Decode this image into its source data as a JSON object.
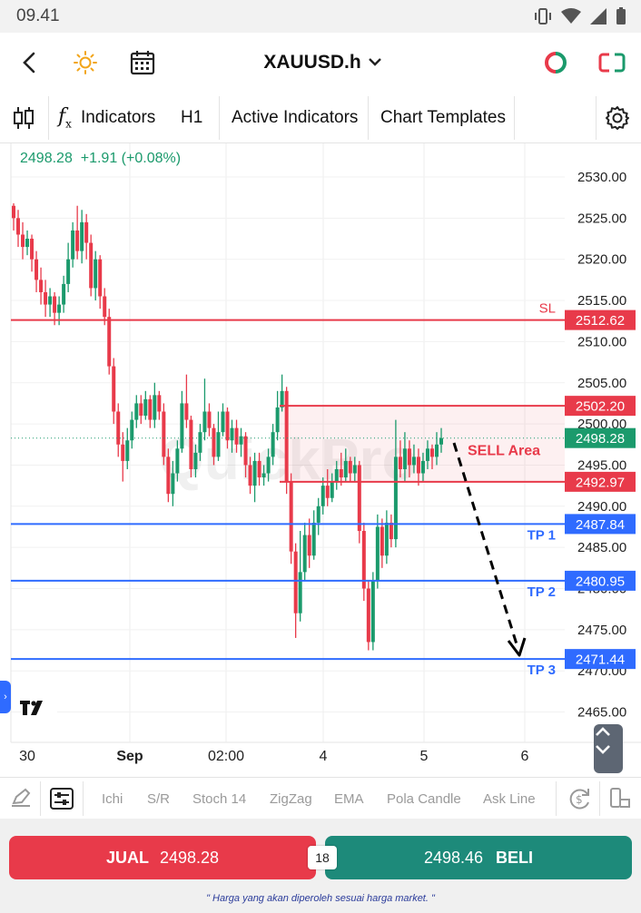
{
  "status_bar": {
    "time": "09.41"
  },
  "header": {
    "symbol": "XAUUSD.h"
  },
  "toolbar": {
    "indicators": "Indicators",
    "timeframe": "H1",
    "active_indicators": "Active Indicators",
    "chart_templates": "Chart Templates"
  },
  "quote": {
    "price": "2498.28",
    "change": "+1.91",
    "change_pct": "(+0.08%)"
  },
  "watermark": "QuickPro",
  "colors": {
    "bull": "#1b9a6c",
    "bear": "#e83a4a",
    "level_red": "#e83a4a",
    "level_blue": "#2f6bff"
  },
  "chart_data": {
    "type": "candlestick",
    "y_axis": {
      "ticks": [
        "2530.00",
        "2525.00",
        "2520.00",
        "2515.00",
        "2510.00",
        "2505.00",
        "2500.00",
        "2495.00",
        "2490.00",
        "2485.00",
        "2480.00",
        "2475.00",
        "2470.00",
        "2465.00"
      ],
      "ylim": [
        2462,
        2532
      ]
    },
    "x_axis": {
      "labels": [
        "30",
        "Sep",
        "02:00",
        "4",
        "5",
        "6"
      ]
    },
    "current_price": {
      "label": "2498.28",
      "value": 2498.28
    },
    "levels": [
      {
        "name": "SL",
        "price_label": "2512.62",
        "value": 2512.62,
        "color": "red"
      },
      {
        "name": "",
        "price_label": "2502.20",
        "value": 2502.2,
        "color": "red"
      },
      {
        "name": "",
        "price_label": "2492.97",
        "value": 2492.97,
        "color": "red"
      },
      {
        "name": "TP 1",
        "price_label": "2487.84",
        "value": 2487.84,
        "color": "blue"
      },
      {
        "name": "TP 2",
        "price_label": "2480.95",
        "value": 2480.95,
        "color": "blue"
      },
      {
        "name": "TP 3",
        "price_label": "2471.44",
        "value": 2471.44,
        "color": "blue"
      }
    ],
    "zone": {
      "label": "SELL Area",
      "from": 2492.97,
      "to": 2502.2
    },
    "candles": [
      [
        2526.5,
        2525.0,
        2526.8,
        2523.5
      ],
      [
        2525.0,
        2523.0,
        2526.0,
        2521.5
      ],
      [
        2523.0,
        2521.5,
        2524.5,
        2520.0
      ],
      [
        2521.5,
        2522.5,
        2523.5,
        2520.5
      ],
      [
        2522.5,
        2520.0,
        2523.0,
        2518.5
      ],
      [
        2520.0,
        2517.5,
        2521.0,
        2516.0
      ],
      [
        2517.5,
        2516.0,
        2519.0,
        2514.5
      ],
      [
        2516.0,
        2514.5,
        2517.5,
        2513.0
      ],
      [
        2514.5,
        2515.5,
        2516.5,
        2513.0
      ],
      [
        2515.5,
        2513.5,
        2516.0,
        2512.0
      ],
      [
        2513.5,
        2514.5,
        2515.5,
        2512.0
      ],
      [
        2514.5,
        2517.0,
        2518.0,
        2513.5
      ],
      [
        2517.0,
        2520.0,
        2522.0,
        2516.0
      ],
      [
        2520.0,
        2523.5,
        2524.5,
        2519.0
      ],
      [
        2523.5,
        2521.0,
        2526.5,
        2520.0
      ],
      [
        2521.0,
        2524.5,
        2526.0,
        2519.5
      ],
      [
        2524.5,
        2522.0,
        2525.5,
        2520.0
      ],
      [
        2522.0,
        2516.5,
        2523.0,
        2515.5
      ],
      [
        2516.5,
        2520.0,
        2521.0,
        2515.0
      ],
      [
        2520.0,
        2515.5,
        2520.5,
        2514.0
      ],
      [
        2515.5,
        2513.0,
        2516.5,
        2512.0
      ],
      [
        2513.0,
        2507.0,
        2514.0,
        2506.0
      ],
      [
        2507.0,
        2501.5,
        2508.0,
        2500.0
      ],
      [
        2501.5,
        2497.5,
        2502.5,
        2496.0
      ],
      [
        2497.5,
        2495.5,
        2499.0,
        2493.0
      ],
      [
        2495.5,
        2498.0,
        2499.5,
        2494.5
      ],
      [
        2498.0,
        2500.5,
        2501.5,
        2497.0
      ],
      [
        2500.5,
        2502.5,
        2503.5,
        2499.5
      ],
      [
        2502.5,
        2501.0,
        2503.5,
        2500.0
      ],
      [
        2501.0,
        2503.0,
        2504.0,
        2500.5
      ],
      [
        2503.0,
        2500.5,
        2503.5,
        2499.5
      ],
      [
        2500.5,
        2503.5,
        2505.0,
        2499.5
      ],
      [
        2503.5,
        2501.5,
        2504.0,
        2500.5
      ],
      [
        2501.5,
        2496.0,
        2502.5,
        2495.0
      ],
      [
        2496.0,
        2491.5,
        2497.0,
        2490.5
      ],
      [
        2491.5,
        2494.0,
        2495.5,
        2490.0
      ],
      [
        2494.0,
        2497.0,
        2498.0,
        2493.0
      ],
      [
        2497.0,
        2502.5,
        2504.0,
        2496.5
      ],
      [
        2502.5,
        2500.5,
        2506.0,
        2499.5
      ],
      [
        2500.5,
        2494.5,
        2501.0,
        2493.5
      ],
      [
        2494.5,
        2496.5,
        2497.5,
        2493.5
      ],
      [
        2496.5,
        2499.0,
        2500.0,
        2495.5
      ],
      [
        2499.0,
        2501.5,
        2505.5,
        2498.0
      ],
      [
        2501.5,
        2499.5,
        2502.5,
        2498.5
      ],
      [
        2499.5,
        2496.0,
        2500.0,
        2495.0
      ],
      [
        2496.0,
        2499.0,
        2501.5,
        2495.5
      ],
      [
        2499.0,
        2501.5,
        2502.5,
        2498.5
      ],
      [
        2501.5,
        2498.0,
        2502.0,
        2497.0
      ],
      [
        2498.0,
        2499.5,
        2500.5,
        2496.5
      ],
      [
        2499.5,
        2497.5,
        2500.5,
        2496.5
      ],
      [
        2497.5,
        2498.5,
        2499.5,
        2496.0
      ],
      [
        2498.5,
        2495.0,
        2499.0,
        2493.5
      ],
      [
        2495.0,
        2492.5,
        2496.0,
        2491.5
      ],
      [
        2492.5,
        2495.5,
        2496.5,
        2490.5
      ],
      [
        2495.5,
        2493.5,
        2496.5,
        2492.5
      ],
      [
        2493.5,
        2494.0,
        2495.0,
        2492.5
      ],
      [
        2494.0,
        2496.0,
        2497.0,
        2493.0
      ],
      [
        2496.0,
        2499.0,
        2500.0,
        2495.0
      ],
      [
        2499.0,
        2502.0,
        2504.0,
        2498.0
      ],
      [
        2502.0,
        2504.0,
        2506.0,
        2501.5
      ],
      [
        2504.0,
        2493.0,
        2504.5,
        2491.5
      ],
      [
        2493.0,
        2484.5,
        2494.0,
        2483.0
      ],
      [
        2484.5,
        2477.0,
        2485.5,
        2474.0
      ],
      [
        2477.0,
        2482.0,
        2487.0,
        2476.0
      ],
      [
        2482.0,
        2486.5,
        2488.0,
        2481.0
      ],
      [
        2486.5,
        2484.0,
        2488.5,
        2482.5
      ],
      [
        2484.0,
        2488.0,
        2489.5,
        2483.5
      ],
      [
        2488.0,
        2490.0,
        2491.0,
        2486.5
      ],
      [
        2490.0,
        2492.5,
        2493.5,
        2489.0
      ],
      [
        2492.5,
        2491.0,
        2494.5,
        2490.0
      ],
      [
        2491.0,
        2493.0,
        2494.0,
        2490.5
      ],
      [
        2493.0,
        2494.5,
        2495.5,
        2492.0
      ],
      [
        2494.5,
        2493.5,
        2496.5,
        2492.5
      ],
      [
        2493.5,
        2495.5,
        2497.0,
        2493.0
      ],
      [
        2495.5,
        2494.0,
        2496.0,
        2493.0
      ],
      [
        2494.0,
        2495.0,
        2496.0,
        2493.0
      ],
      [
        2495.0,
        2487.0,
        2495.5,
        2485.5
      ],
      [
        2487.0,
        2480.0,
        2488.0,
        2478.5
      ],
      [
        2480.0,
        2473.5,
        2481.0,
        2472.5
      ],
      [
        2473.5,
        2481.0,
        2482.0,
        2472.5
      ],
      [
        2481.0,
        2487.5,
        2489.0,
        2480.0
      ],
      [
        2487.5,
        2484.0,
        2488.5,
        2482.5
      ],
      [
        2484.0,
        2488.0,
        2489.5,
        2483.0
      ],
      [
        2488.0,
        2486.0,
        2489.0,
        2485.0
      ],
      [
        2486.0,
        2496.0,
        2500.5,
        2485.0
      ],
      [
        2496.0,
        2494.5,
        2498.0,
        2493.5
      ],
      [
        2494.5,
        2497.0,
        2499.0,
        2493.0
      ],
      [
        2497.0,
        2495.0,
        2498.0,
        2493.5
      ],
      [
        2495.0,
        2496.0,
        2497.5,
        2494.0
      ],
      [
        2496.0,
        2494.0,
        2497.0,
        2492.5
      ],
      [
        2494.0,
        2495.5,
        2496.5,
        2493.0
      ],
      [
        2495.5,
        2497.0,
        2498.0,
        2494.5
      ],
      [
        2497.0,
        2496.0,
        2497.5,
        2494.5
      ],
      [
        2496.0,
        2497.5,
        2499.0,
        2495.0
      ],
      [
        2497.5,
        2498.28,
        2499.5,
        2496.5
      ]
    ],
    "annotation": "dashed arrow pointing down to TP 3"
  },
  "bottom_toolbar": {
    "items": [
      "Ichi",
      "S/R",
      "Stoch 14",
      "ZigZag",
      "EMA",
      "Pola Candle",
      "Ask Line"
    ]
  },
  "order": {
    "sell_label": "JUAL",
    "sell_price": "2498.28",
    "spread": "18",
    "buy_price": "2498.46",
    "buy_label": "BELI",
    "disclaimer": "\" Harga yang akan diperoleh sesuai harga market. \""
  }
}
